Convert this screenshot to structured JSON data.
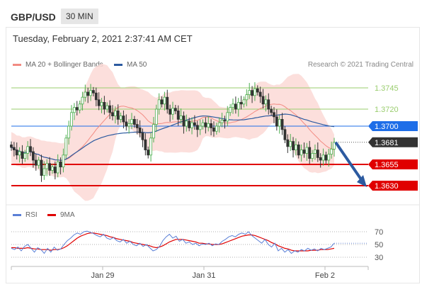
{
  "header": {
    "symbol": "GBP/USD",
    "interval": "30 MIN"
  },
  "datetime": "Tuesday, February 2, 2021 2:37:41 AM CET",
  "legend": [
    {
      "label": "MA 20 + Bollinger Bands",
      "color": "#f28b82"
    },
    {
      "label": "MA 50",
      "color": "#2c5aa0"
    }
  ],
  "credit": "Research © 2021 Trading Central",
  "rsi_legend": [
    {
      "label": "RSI",
      "color": "#5a7fd6"
    },
    {
      "label": "9MA",
      "color": "#e00000"
    }
  ],
  "chart_data": {
    "type": "candlestick",
    "price_range": [
      1.3615,
      1.3765
    ],
    "levels": [
      {
        "value": 1.3745,
        "label": "1.3745",
        "kind": "resistance",
        "color": "#9acd6e"
      },
      {
        "value": 1.372,
        "label": "1.3720",
        "kind": "resistance",
        "color": "#9acd6e"
      },
      {
        "value": 1.37,
        "label": "1.3700",
        "kind": "pivot",
        "color": "#1e6ee8"
      },
      {
        "value": 1.3681,
        "label": "1.3681",
        "kind": "last",
        "color": "#333333"
      },
      {
        "value": 1.3655,
        "label": "1.3655",
        "kind": "support",
        "color": "#e00000"
      },
      {
        "value": 1.363,
        "label": "1.3630",
        "kind": "support",
        "color": "#e00000"
      }
    ],
    "x_ticks": [
      "Jan 29",
      "Jan 31",
      "Feb 2"
    ],
    "closes": [
      1.3675,
      1.3672,
      1.3666,
      1.367,
      1.3662,
      1.3668,
      1.3676,
      1.367,
      1.366,
      1.3654,
      1.366,
      1.3642,
      1.365,
      1.3656,
      1.3648,
      1.3652,
      1.3645,
      1.3658,
      1.3652,
      1.3666,
      1.3686,
      1.37,
      1.3716,
      1.3722,
      1.3719,
      1.3726,
      1.3734,
      1.374,
      1.3736,
      1.3742,
      1.3739,
      1.3731,
      1.3724,
      1.3728,
      1.372,
      1.3724,
      1.3716,
      1.3712,
      1.3718,
      1.3708,
      1.3712,
      1.3705,
      1.37,
      1.3703,
      1.3708,
      1.3702,
      1.3698,
      1.3692,
      1.3684,
      1.3672,
      1.3666,
      1.3686,
      1.3702,
      1.372,
      1.3731,
      1.3726,
      1.3734,
      1.372,
      1.3714,
      1.3721,
      1.3718,
      1.3708,
      1.3712,
      1.37,
      1.3706,
      1.3698,
      1.3704,
      1.3701,
      1.3696,
      1.37,
      1.3704,
      1.3699,
      1.3703,
      1.3698,
      1.3694,
      1.37,
      1.3704,
      1.3707,
      1.3706,
      1.3716,
      1.3722,
      1.3726,
      1.372,
      1.3728,
      1.3726,
      1.3731,
      1.3737,
      1.3742,
      1.3736,
      1.3744,
      1.374,
      1.3735,
      1.3726,
      1.3731,
      1.372,
      1.3716,
      1.3711,
      1.37,
      1.3708,
      1.3696,
      1.3684,
      1.3676,
      1.3682,
      1.3672,
      1.3678,
      1.3666,
      1.3672,
      1.3668,
      1.3675,
      1.3662,
      1.3668,
      1.3672,
      1.3663,
      1.366,
      1.3666,
      1.366,
      1.3667,
      1.3673,
      1.3681
    ],
    "rsi": {
      "ylim": [
        20,
        80
      ],
      "ticks": [
        70,
        50,
        30
      ],
      "rsi_values": [
        44,
        42,
        46,
        40,
        47,
        50,
        44,
        38,
        45,
        42,
        36,
        44,
        38,
        46,
        41,
        43,
        50,
        56,
        60,
        65,
        68,
        66,
        70,
        71,
        69,
        67,
        64,
        62,
        66,
        60,
        58,
        61,
        56,
        54,
        58,
        52,
        55,
        50,
        48,
        52,
        47,
        50,
        45,
        40,
        42,
        47,
        56,
        62,
        66,
        60,
        63,
        55,
        58,
        52,
        54,
        50,
        52,
        48,
        51,
        50,
        52,
        48,
        51,
        50,
        55,
        58,
        62,
        64,
        62,
        66,
        68,
        66,
        70,
        64,
        60,
        56,
        52,
        58,
        50,
        46,
        52,
        40,
        44,
        38,
        42,
        36,
        40,
        38,
        42,
        40,
        44,
        41,
        43,
        40,
        44,
        42,
        44,
        46,
        52
      ],
      "ma_values": [
        45,
        45,
        44,
        44,
        44,
        45,
        44,
        43,
        43,
        42,
        42,
        42,
        41,
        42,
        42,
        43,
        45,
        48,
        52,
        56,
        60,
        63,
        65,
        67,
        68,
        68,
        67,
        66,
        65,
        64,
        62,
        61,
        59,
        58,
        57,
        56,
        55,
        53,
        52,
        51,
        50,
        49,
        48,
        46,
        45,
        46,
        48,
        51,
        54,
        56,
        58,
        58,
        58,
        57,
        56,
        55,
        54,
        52,
        52,
        51,
        51,
        50,
        50,
        50,
        51,
        53,
        55,
        57,
        59,
        61,
        63,
        64,
        65,
        65,
        64,
        62,
        60,
        58,
        56,
        53,
        51,
        48,
        46,
        44,
        43,
        41,
        40,
        40,
        40,
        40,
        40,
        41,
        41,
        41,
        42,
        42,
        42,
        43,
        44
      ]
    }
  }
}
